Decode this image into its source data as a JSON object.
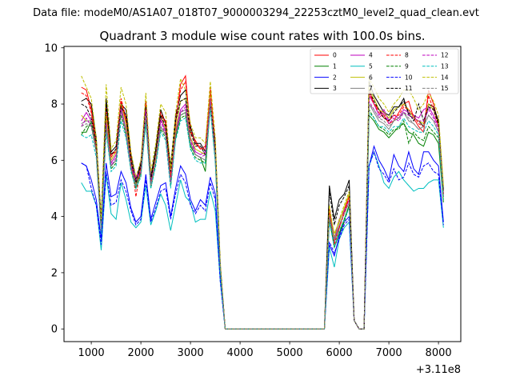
{
  "figure": {
    "suptitle": "Data file: modeM0/AS1A07_018T07_9000003294_22253cztM0_level2_quad_clean.evt",
    "x_offset_label": "+3.11e8"
  },
  "chart_data": {
    "type": "line",
    "title": "Quadrant 3 module wise count rates with 100.0s bins.",
    "xlabel": "",
    "ylabel": "",
    "x_offset": 311000000,
    "xlim": [
      450,
      8450
    ],
    "ylim": [
      -0.45,
      10.05
    ],
    "xticks": [
      1000,
      2000,
      3000,
      4000,
      5000,
      6000,
      7000,
      8000
    ],
    "xtick_labels": [
      "1000",
      "2000",
      "3000",
      "4000",
      "5000",
      "6000",
      "7000",
      "8000"
    ],
    "yticks": [
      0,
      2,
      4,
      6,
      8,
      10
    ],
    "ytick_labels": [
      "0",
      "2",
      "4",
      "6",
      "8",
      "10"
    ],
    "grid": false,
    "legend_position": "top-right",
    "legend_columns": 4,
    "segments": [
      {
        "x_start": 800,
        "x_step": 100,
        "n": 30
      },
      {
        "x_start": 5800,
        "x_step": 100,
        "n": 24
      }
    ],
    "gap_x": [
      3800,
      5700
    ],
    "gap_value": 0,
    "series": [
      {
        "name": "0",
        "color": "#ff0000",
        "dash": "solid",
        "values": [
          8.6,
          8.5,
          7.8,
          6.6,
          3.8,
          7.6,
          6.2,
          6.3,
          8.1,
          7.4,
          6.0,
          5.1,
          5.9,
          8.0,
          5.2,
          6.3,
          7.6,
          7.4,
          5.4,
          7.3,
          8.7,
          9.0,
          7.0,
          6.7,
          6.4,
          6.5,
          8.5,
          6.5,
          2.2,
          0.0,
          4.3,
          3.1,
          3.6,
          4.2,
          4.8,
          0.3,
          0.0,
          0.0,
          8.5,
          8.0,
          7.8,
          7.6,
          7.3,
          7.4,
          7.7,
          8.0,
          8.1,
          7.5,
          7.2,
          7.0,
          8.5,
          8.0,
          7.3,
          4.8
        ]
      },
      {
        "name": "1",
        "color": "#008000",
        "dash": "solid",
        "values": [
          7.0,
          7.0,
          7.4,
          6.4,
          3.6,
          7.3,
          5.8,
          6.0,
          7.8,
          7.0,
          5.7,
          5.1,
          5.6,
          7.4,
          5.1,
          6.0,
          7.2,
          6.9,
          5.2,
          6.8,
          7.6,
          7.7,
          6.5,
          6.2,
          6.1,
          5.6,
          8.0,
          6.1,
          2.2,
          0.0,
          4.0,
          2.9,
          3.4,
          3.9,
          4.4,
          0.3,
          0.0,
          0.0,
          7.6,
          7.4,
          7.1,
          7.0,
          6.8,
          7.0,
          7.2,
          7.3,
          7.0,
          6.9,
          6.6,
          6.5,
          7.0,
          6.9,
          6.6,
          4.5
        ]
      },
      {
        "name": "2",
        "color": "#0000ff",
        "dash": "solid",
        "values": [
          5.9,
          5.8,
          5.3,
          4.6,
          3.2,
          5.9,
          4.7,
          4.8,
          5.6,
          5.2,
          4.3,
          3.8,
          4.0,
          5.5,
          3.9,
          4.5,
          5.1,
          5.2,
          4.0,
          5.0,
          5.8,
          5.5,
          4.6,
          4.2,
          4.6,
          4.4,
          5.4,
          4.8,
          1.8,
          0.0,
          3.0,
          2.6,
          3.3,
          3.8,
          4.0,
          0.3,
          0.0,
          0.0,
          5.8,
          6.5,
          6.0,
          5.7,
          5.3,
          6.2,
          5.8,
          5.6,
          6.3,
          5.7,
          5.5,
          6.3,
          6.3,
          6.0,
          5.8,
          3.8
        ]
      },
      {
        "name": "3",
        "color": "#000000",
        "dash": "solid",
        "values": [
          8.1,
          8.2,
          8.0,
          6.8,
          3.9,
          8.2,
          6.3,
          6.5,
          8.0,
          7.8,
          6.2,
          5.3,
          5.9,
          8.1,
          5.4,
          6.4,
          7.8,
          7.3,
          5.8,
          7.6,
          8.3,
          8.5,
          7.2,
          6.6,
          6.6,
          6.3,
          8.2,
          6.6,
          2.3,
          0.0,
          5.1,
          3.9,
          4.6,
          4.8,
          5.3,
          0.3,
          0.0,
          0.0,
          8.8,
          8.3,
          8.0,
          7.7,
          7.6,
          7.9,
          7.9,
          8.2,
          7.6,
          7.5,
          7.4,
          7.2,
          8.0,
          7.9,
          7.4,
          5.0
        ]
      },
      {
        "name": "4",
        "color": "#bf00bf",
        "dash": "solid",
        "values": [
          7.4,
          7.7,
          7.4,
          6.5,
          3.6,
          7.4,
          5.9,
          6.2,
          7.9,
          7.1,
          5.9,
          5.4,
          5.7,
          7.9,
          5.3,
          6.1,
          7.5,
          7.0,
          5.3,
          7.0,
          7.8,
          8.0,
          6.8,
          6.3,
          6.2,
          6.3,
          8.2,
          6.3,
          2.2,
          0.0,
          4.1,
          3.2,
          3.9,
          4.2,
          4.6,
          0.3,
          0.0,
          0.0,
          8.3,
          8.0,
          7.6,
          7.8,
          7.4,
          7.6,
          7.5,
          7.8,
          7.7,
          7.6,
          7.5,
          7.8,
          7.9,
          7.6,
          7.2,
          4.8
        ]
      },
      {
        "name": "5",
        "color": "#00bfbf",
        "dash": "solid",
        "values": [
          5.2,
          4.9,
          4.9,
          4.4,
          2.8,
          5.5,
          4.1,
          3.9,
          5.2,
          4.6,
          3.8,
          3.6,
          3.8,
          5.1,
          3.7,
          4.2,
          4.8,
          4.4,
          3.5,
          4.4,
          5.3,
          4.7,
          4.5,
          3.8,
          3.9,
          3.9,
          4.9,
          4.2,
          1.7,
          0.0,
          2.9,
          2.2,
          3.2,
          3.6,
          3.8,
          0.3,
          0.0,
          0.0,
          5.8,
          6.3,
          5.8,
          5.2,
          5.0,
          5.4,
          5.6,
          5.3,
          5.1,
          4.9,
          5.0,
          5.0,
          5.2,
          5.3,
          5.3,
          3.6
        ]
      },
      {
        "name": "6",
        "color": "#bfbf00",
        "dash": "solid",
        "values": [
          7.6,
          7.4,
          7.4,
          6.6,
          3.6,
          7.6,
          6.0,
          6.3,
          8.0,
          7.3,
          5.9,
          5.2,
          5.7,
          8.0,
          5.3,
          6.1,
          7.6,
          7.1,
          5.3,
          7.1,
          8.1,
          8.2,
          6.8,
          6.4,
          6.3,
          6.2,
          8.5,
          6.3,
          2.2,
          0.0,
          4.2,
          3.4,
          3.8,
          4.3,
          4.8,
          0.3,
          0.0,
          0.0,
          8.6,
          8.2,
          7.8,
          7.7,
          7.5,
          7.8,
          7.9,
          8.0,
          7.8,
          7.5,
          7.4,
          7.3,
          8.0,
          7.8,
          7.3,
          4.9
        ]
      },
      {
        "name": "7",
        "color": "#808080",
        "dash": "solid",
        "values": [
          7.3,
          7.4,
          7.4,
          6.4,
          3.5,
          7.3,
          5.8,
          6.0,
          7.8,
          7.1,
          5.8,
          5.1,
          5.5,
          7.6,
          5.1,
          6.0,
          7.2,
          6.9,
          5.2,
          6.9,
          7.7,
          7.8,
          6.6,
          6.2,
          6.1,
          6.0,
          8.1,
          6.1,
          2.2,
          0.0,
          4.0,
          3.2,
          3.7,
          4.1,
          4.5,
          0.3,
          0.0,
          0.0,
          8.0,
          7.7,
          7.4,
          7.3,
          7.1,
          7.4,
          7.5,
          7.7,
          7.4,
          7.3,
          7.1,
          7.2,
          7.6,
          7.4,
          7.0,
          4.7
        ]
      },
      {
        "name": "8",
        "color": "#ff0000",
        "dash": "dashed",
        "values": [
          8.4,
          8.3,
          7.7,
          6.5,
          3.7,
          7.9,
          6.1,
          6.4,
          8.2,
          7.5,
          6.1,
          4.7,
          5.8,
          8.1,
          5.2,
          6.3,
          7.7,
          7.3,
          5.4,
          7.4,
          8.5,
          8.8,
          7.1,
          6.6,
          6.4,
          6.4,
          8.6,
          6.5,
          2.2,
          0.0,
          4.2,
          3.0,
          3.6,
          4.1,
          4.7,
          0.3,
          0.0,
          0.0,
          8.4,
          8.0,
          7.7,
          7.5,
          7.4,
          7.6,
          7.6,
          7.9,
          7.8,
          7.6,
          7.3,
          7.2,
          8.3,
          7.8,
          7.2,
          4.8
        ]
      },
      {
        "name": "9",
        "color": "#008000",
        "dash": "dashed",
        "values": [
          6.9,
          7.2,
          7.3,
          6.3,
          3.6,
          7.1,
          5.7,
          5.9,
          7.6,
          6.9,
          5.7,
          5.0,
          5.5,
          7.4,
          5.0,
          5.9,
          7.1,
          6.8,
          5.1,
          6.8,
          7.5,
          7.6,
          6.4,
          6.1,
          6.0,
          5.9,
          8.0,
          6.0,
          2.1,
          0.0,
          3.9,
          2.9,
          3.4,
          3.8,
          4.4,
          0.3,
          0.0,
          0.0,
          7.8,
          7.5,
          7.2,
          7.1,
          6.9,
          7.1,
          7.1,
          7.4,
          6.6,
          7.0,
          6.8,
          6.7,
          7.2,
          7.0,
          6.8,
          4.6
        ]
      },
      {
        "name": "10",
        "color": "#0000ff",
        "dash": "dashed",
        "values": [
          5.9,
          5.8,
          5.0,
          4.4,
          3.0,
          5.6,
          4.4,
          4.5,
          5.3,
          4.9,
          4.2,
          3.7,
          3.9,
          5.3,
          3.8,
          4.3,
          4.9,
          5.0,
          3.9,
          4.8,
          5.5,
          5.2,
          4.4,
          4.1,
          4.4,
          4.2,
          5.2,
          4.6,
          1.7,
          0.0,
          3.1,
          2.7,
          3.2,
          3.7,
          3.9,
          0.3,
          0.0,
          0.0,
          5.8,
          6.3,
          5.7,
          5.5,
          5.2,
          5.7,
          5.3,
          5.4,
          5.9,
          5.5,
          5.4,
          5.8,
          5.9,
          5.6,
          5.5,
          3.7
        ]
      },
      {
        "name": "11",
        "color": "#000000",
        "dash": "dashed",
        "values": [
          8.0,
          7.9,
          7.5,
          6.6,
          3.8,
          8.0,
          6.2,
          6.4,
          7.9,
          7.6,
          6.0,
          5.2,
          5.8,
          7.9,
          5.3,
          6.3,
          7.6,
          7.2,
          5.6,
          7.4,
          8.1,
          8.2,
          7.0,
          6.5,
          6.5,
          6.2,
          8.0,
          6.5,
          2.3,
          0.0,
          4.9,
          3.7,
          4.4,
          4.7,
          5.1,
          0.3,
          0.0,
          0.0,
          8.5,
          8.1,
          7.8,
          7.5,
          7.4,
          7.7,
          7.9,
          8.1,
          7.7,
          7.4,
          8.0,
          7.4,
          7.9,
          7.8,
          7.3,
          4.9
        ]
      },
      {
        "name": "12",
        "color": "#bf00bf",
        "dash": "dashed",
        "values": [
          7.2,
          7.5,
          7.2,
          6.3,
          3.5,
          7.3,
          5.8,
          6.1,
          7.8,
          7.0,
          5.8,
          5.3,
          5.6,
          7.8,
          5.2,
          6.0,
          7.4,
          6.9,
          5.2,
          6.9,
          7.7,
          7.9,
          6.7,
          6.2,
          6.1,
          6.2,
          8.1,
          6.2,
          2.2,
          0.0,
          4.0,
          3.1,
          3.7,
          4.1,
          4.5,
          0.3,
          0.0,
          0.0,
          8.1,
          7.8,
          7.5,
          7.7,
          7.3,
          7.5,
          7.4,
          7.7,
          7.6,
          7.5,
          7.4,
          7.4,
          7.8,
          7.5,
          7.1,
          4.7
        ]
      },
      {
        "name": "13",
        "color": "#00bfbf",
        "dash": "dashed",
        "values": [
          6.9,
          6.8,
          6.9,
          6.1,
          3.4,
          7.0,
          5.6,
          5.8,
          7.4,
          6.8,
          5.6,
          5.0,
          5.4,
          7.3,
          5.0,
          5.8,
          7.0,
          6.7,
          5.0,
          6.7,
          7.4,
          7.5,
          6.4,
          6.0,
          5.9,
          5.9,
          7.8,
          5.9,
          2.1,
          0.0,
          3.8,
          2.9,
          3.5,
          3.9,
          4.3,
          0.3,
          0.0,
          0.0,
          7.7,
          7.5,
          7.2,
          7.2,
          7.0,
          7.2,
          7.2,
          7.5,
          7.2,
          7.1,
          7.0,
          7.0,
          7.4,
          7.2,
          6.9,
          4.6
        ]
      },
      {
        "name": "14",
        "color": "#bfbf00",
        "dash": "dashed",
        "values": [
          9.0,
          8.6,
          8.2,
          6.8,
          3.9,
          8.7,
          6.4,
          6.7,
          8.6,
          8.0,
          6.3,
          5.4,
          6.0,
          8.4,
          5.6,
          6.6,
          8.0,
          7.7,
          5.7,
          7.7,
          8.9,
          8.5,
          7.3,
          6.8,
          6.8,
          6.6,
          8.8,
          6.8,
          2.4,
          0.0,
          4.4,
          3.3,
          3.9,
          4.4,
          4.9,
          0.3,
          0.0,
          0.0,
          8.9,
          8.6,
          8.2,
          8.0,
          7.7,
          8.0,
          8.2,
          8.5,
          8.5,
          8.2,
          7.8,
          8.0,
          8.4,
          8.1,
          7.6,
          5.1
        ]
      },
      {
        "name": "15",
        "color": "#808080",
        "dash": "dashed",
        "values": [
          7.2,
          7.3,
          7.2,
          6.3,
          3.5,
          7.2,
          5.8,
          6.0,
          7.7,
          7.0,
          5.7,
          5.1,
          5.5,
          7.6,
          5.1,
          6.0,
          7.2,
          6.9,
          5.2,
          6.9,
          7.6,
          7.7,
          6.6,
          6.2,
          6.1,
          6.0,
          8.0,
          6.1,
          2.2,
          0.0,
          4.0,
          3.1,
          3.7,
          4.1,
          4.5,
          0.3,
          0.0,
          0.0,
          8.0,
          7.8,
          7.5,
          7.4,
          7.2,
          7.4,
          7.5,
          7.7,
          7.5,
          7.3,
          7.1,
          7.2,
          7.6,
          7.4,
          7.0,
          4.7
        ]
      }
    ]
  }
}
